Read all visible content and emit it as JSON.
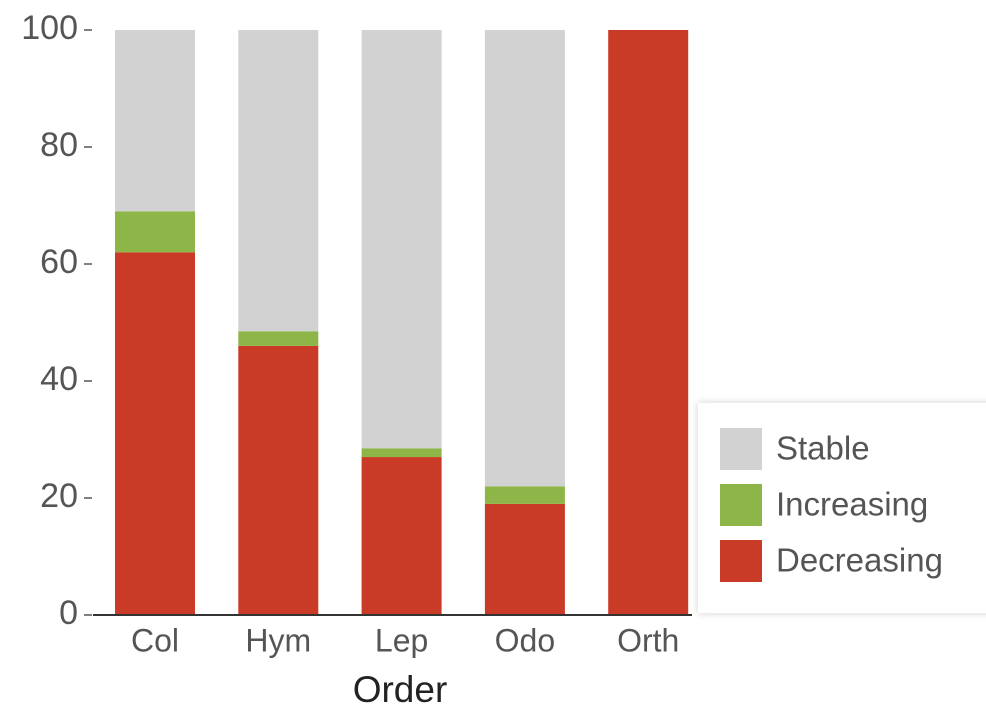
{
  "chart_data": {
    "type": "stacked_bar",
    "x_label": "Order",
    "categories": [
      "Col",
      "Hym",
      "Lep",
      "Odo",
      "Orth"
    ],
    "series": [
      {
        "name": "Decreasing",
        "color": "#c93a27",
        "values": [
          62,
          46,
          27,
          19,
          100
        ]
      },
      {
        "name": "Increasing",
        "color": "#8db547",
        "values": [
          7,
          2.5,
          1.5,
          3,
          0
        ]
      },
      {
        "name": "Stable",
        "color": "#d2d2d2",
        "values": [
          31,
          51.5,
          71.5,
          78,
          0
        ]
      }
    ],
    "ylim": [
      0,
      100
    ],
    "yticks": [
      0,
      20,
      40,
      60,
      80,
      100
    ],
    "grid": true,
    "legend": "right"
  }
}
